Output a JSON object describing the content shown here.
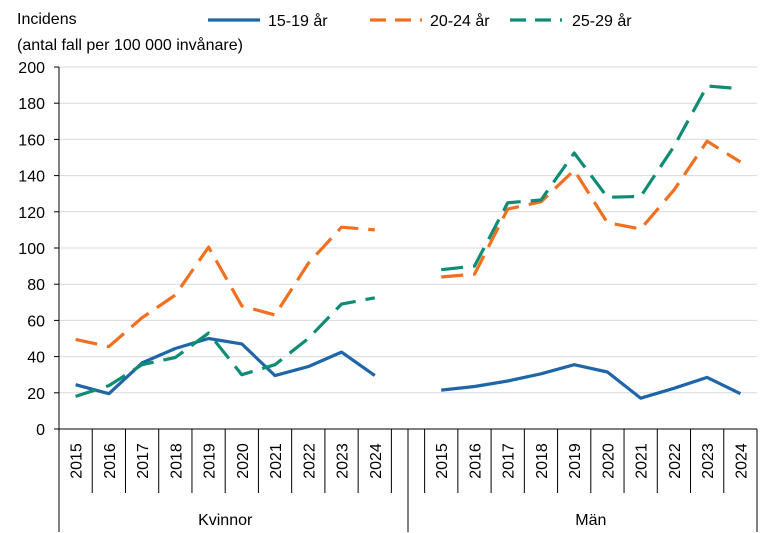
{
  "chart_data": {
    "type": "line",
    "ylabel_line1": "Incidens",
    "ylabel_line2": "(antal fall per 100 000 invånare)",
    "ylim": [
      0,
      200
    ],
    "yticks": [
      "0",
      "20",
      "40",
      "60",
      "80",
      "100",
      "120",
      "140",
      "160",
      "180",
      "200"
    ],
    "grid": "horizontal",
    "legend_position": "top",
    "groups": [
      {
        "label": "Kvinnor",
        "years": [
          "2015",
          "2016",
          "2017",
          "2018",
          "2019",
          "2020",
          "2021",
          "2022",
          "2023",
          "2024"
        ]
      },
      {
        "label": "Män",
        "years": [
          "2015",
          "2016",
          "2017",
          "2018",
          "2019",
          "2020",
          "2021",
          "2022",
          "2023",
          "2024"
        ]
      }
    ],
    "series": [
      {
        "name": "15-19 år",
        "color": "#1f66a8",
        "dash": "solid",
        "values_by_group": [
          [
            24.5,
            19.5,
            36.5,
            44.5,
            50.0,
            47.0,
            29.5,
            34.5,
            42.5,
            29.5
          ],
          [
            21.5,
            23.5,
            26.5,
            30.5,
            35.5,
            31.5,
            17.0,
            22.5,
            28.5,
            19.5
          ]
        ]
      },
      {
        "name": "20-24 år",
        "color": "#f07020",
        "dash": "dashed",
        "values_by_group": [
          [
            49.5,
            45.5,
            61.5,
            74.0,
            100.5,
            68.0,
            63.0,
            91.5,
            111.5,
            110.0
          ],
          [
            84.0,
            85.5,
            121.5,
            125.5,
            143.0,
            114.0,
            110.5,
            132.0,
            159.0,
            147.5
          ]
        ]
      },
      {
        "name": "25-29 år",
        "color": "#0e8c74",
        "dash": "dashed",
        "values_by_group": [
          [
            18.0,
            24.0,
            35.5,
            39.5,
            53.0,
            30.0,
            35.5,
            50.0,
            69.0,
            72.5
          ],
          [
            88.0,
            90.0,
            125.0,
            126.5,
            152.5,
            128.0,
            128.5,
            156.0,
            189.5,
            188.0
          ]
        ]
      }
    ]
  }
}
